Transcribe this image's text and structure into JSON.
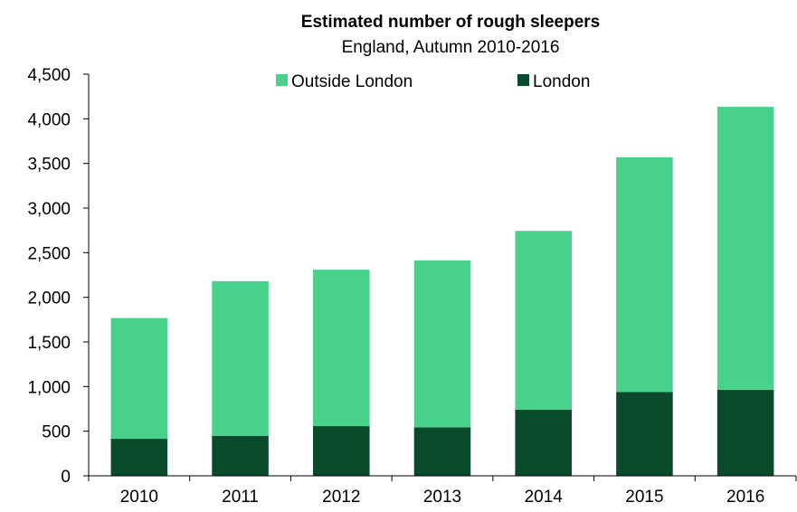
{
  "chart_data": {
    "type": "bar",
    "stacked": true,
    "title": "Estimated number of rough sleepers",
    "subtitle": "England, Autumn 2010-2016",
    "categories": [
      "2010",
      "2011",
      "2012",
      "2013",
      "2014",
      "2015",
      "2016"
    ],
    "series": [
      {
        "name": "London",
        "color": "#0a4a2c",
        "values": [
          415,
          446,
          557,
          543,
          742,
          940,
          964
        ]
      },
      {
        "name": "Outside London",
        "color": "#48d18b",
        "values": [
          1353,
          1735,
          1752,
          1871,
          2002,
          2629,
          3170
        ]
      }
    ],
    "legend_order": [
      "Outside London",
      "London"
    ],
    "legend_position": "top",
    "ylim": [
      0,
      4500
    ],
    "yticks": [
      0,
      500,
      1000,
      1500,
      2000,
      2500,
      3000,
      3500,
      4000,
      4500
    ],
    "ytick_labels": [
      "0",
      "500",
      "1,000",
      "1,500",
      "2,000",
      "2,500",
      "3,000",
      "3,500",
      "4,000",
      "4,500"
    ],
    "xlabel": "",
    "ylabel": "",
    "grid": false
  }
}
